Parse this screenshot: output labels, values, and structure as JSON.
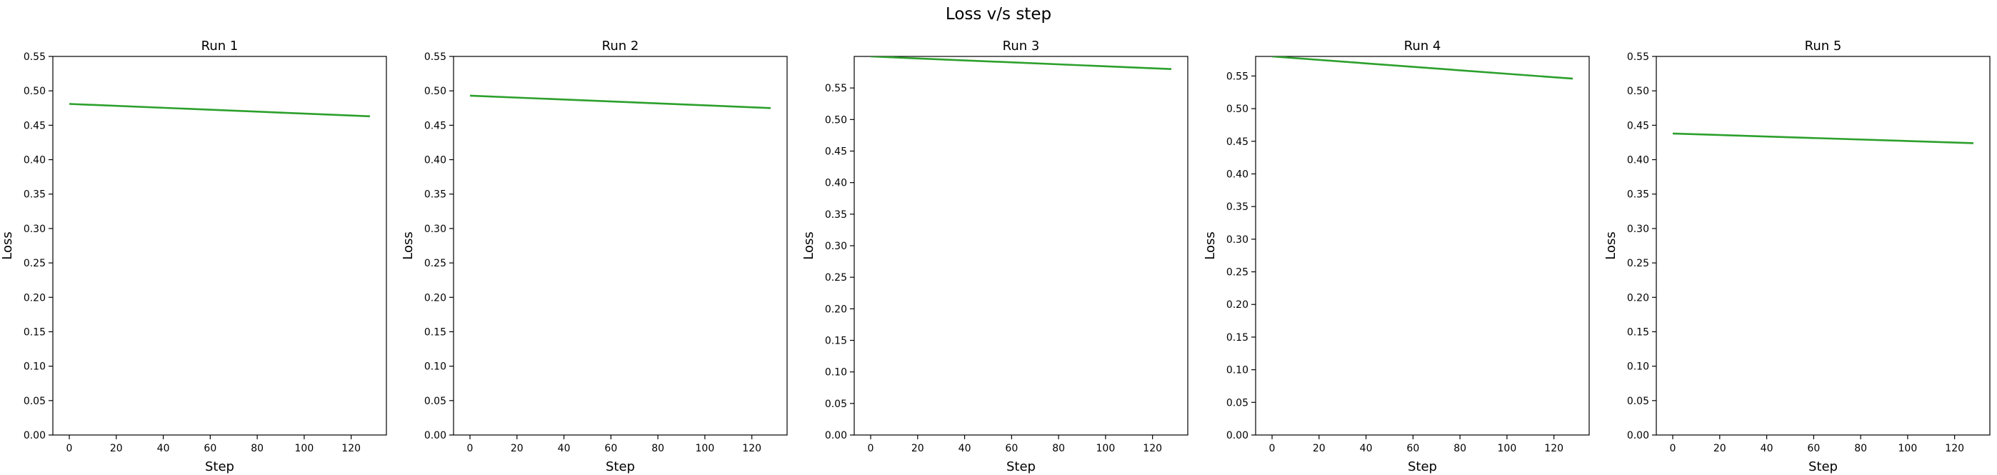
{
  "figure": {
    "suptitle": "Loss v/s step",
    "line_color": "#2ca02c"
  },
  "chart_data": [
    {
      "type": "line",
      "title": "Run 1",
      "xlabel": "Step",
      "ylabel": "Loss",
      "xlim": [
        -7,
        135
      ],
      "ylim": [
        0.0,
        0.55
      ],
      "xticks": [
        0,
        20,
        40,
        60,
        80,
        100,
        120
      ],
      "yticks": [
        0.0,
        0.05,
        0.1,
        0.15,
        0.2,
        0.25,
        0.3,
        0.35,
        0.4,
        0.45,
        0.5,
        0.55
      ],
      "grid": false,
      "series": [
        {
          "x": [
            0,
            128
          ],
          "y": [
            0.481,
            0.463
          ]
        }
      ]
    },
    {
      "type": "line",
      "title": "Run 2",
      "xlabel": "Step",
      "ylabel": "Loss",
      "xlim": [
        -7,
        135
      ],
      "ylim": [
        0.0,
        0.55
      ],
      "xticks": [
        0,
        20,
        40,
        60,
        80,
        100,
        120
      ],
      "yticks": [
        0.0,
        0.05,
        0.1,
        0.15,
        0.2,
        0.25,
        0.3,
        0.35,
        0.4,
        0.45,
        0.5,
        0.55
      ],
      "grid": false,
      "series": [
        {
          "x": [
            0,
            128
          ],
          "y": [
            0.493,
            0.475
          ]
        }
      ]
    },
    {
      "type": "line",
      "title": "Run 3",
      "xlabel": "Step",
      "ylabel": "Loss",
      "xlim": [
        -7,
        135
      ],
      "ylim": [
        0.0,
        0.6
      ],
      "xticks": [
        0,
        20,
        40,
        60,
        80,
        100,
        120
      ],
      "yticks": [
        0.0,
        0.05,
        0.1,
        0.15,
        0.2,
        0.25,
        0.3,
        0.35,
        0.4,
        0.45,
        0.5,
        0.55
      ],
      "grid": false,
      "series": [
        {
          "x": [
            0,
            128
          ],
          "y": [
            0.6,
            0.58
          ]
        }
      ]
    },
    {
      "type": "line",
      "title": "Run 4",
      "xlabel": "Step",
      "ylabel": "Loss",
      "xlim": [
        -7,
        135
      ],
      "ylim": [
        0.0,
        0.58
      ],
      "xticks": [
        0,
        20,
        40,
        60,
        80,
        100,
        120
      ],
      "yticks": [
        0.0,
        0.05,
        0.1,
        0.15,
        0.2,
        0.25,
        0.3,
        0.35,
        0.4,
        0.45,
        0.5,
        0.55
      ],
      "grid": false,
      "series": [
        {
          "x": [
            0,
            128
          ],
          "y": [
            0.58,
            0.546
          ]
        }
      ]
    },
    {
      "type": "line",
      "title": "Run 5",
      "xlabel": "Step",
      "ylabel": "Loss",
      "xlim": [
        -7,
        135
      ],
      "ylim": [
        0.0,
        0.55
      ],
      "xticks": [
        0,
        20,
        40,
        60,
        80,
        100,
        120
      ],
      "yticks": [
        0.0,
        0.05,
        0.1,
        0.15,
        0.2,
        0.25,
        0.3,
        0.35,
        0.4,
        0.45,
        0.5,
        0.55
      ],
      "grid": false,
      "series": [
        {
          "x": [
            0,
            128
          ],
          "y": [
            0.438,
            0.424
          ]
        }
      ]
    }
  ]
}
